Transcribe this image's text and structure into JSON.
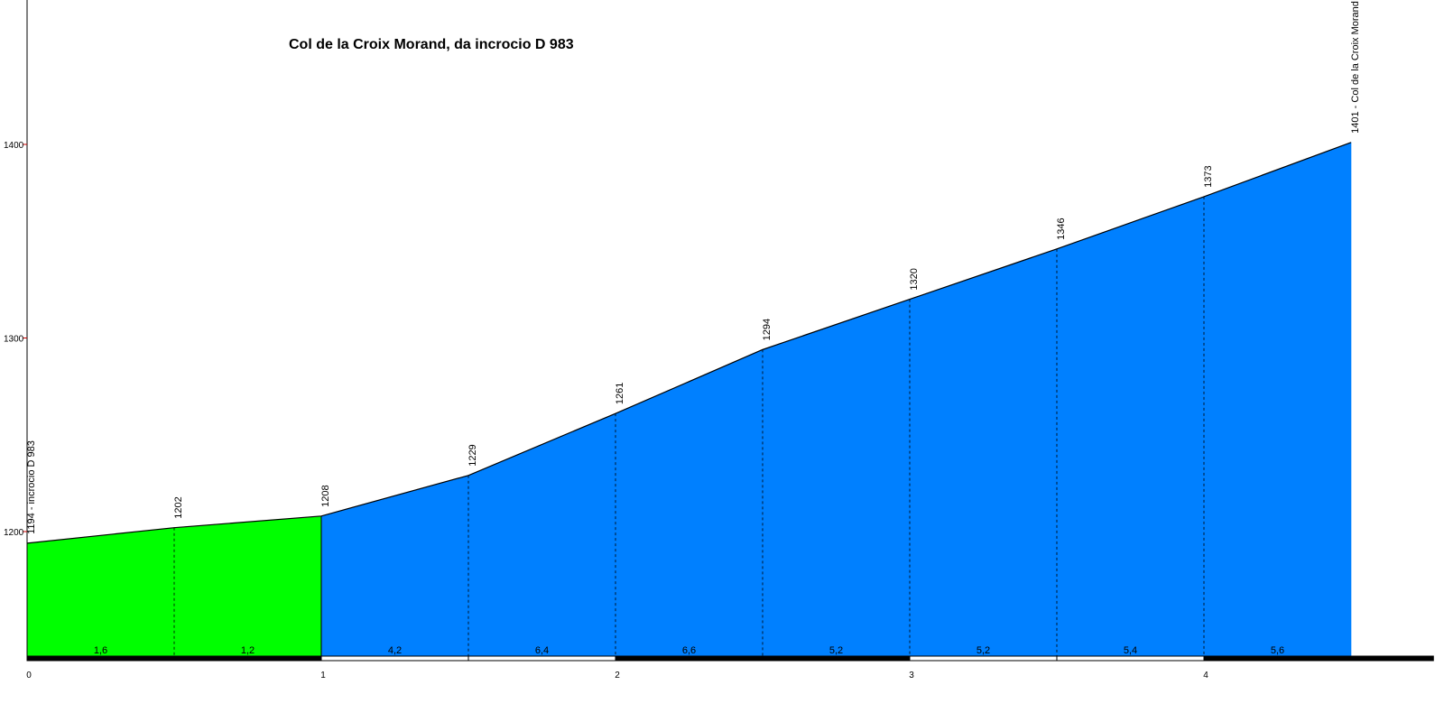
{
  "chart_data": {
    "type": "area",
    "title": "Col de la Croix Morand, da incrocio D 983",
    "xlabel": "",
    "ylabel": "",
    "xlim": [
      0,
      4.78
    ],
    "ylim": [
      1134,
      1474
    ],
    "x_ticks": [
      0,
      1,
      2,
      3,
      4
    ],
    "y_ticks": [
      1200,
      1300,
      1400
    ],
    "points": [
      {
        "x": 0,
        "y": 1194
      },
      {
        "x": 0.5,
        "y": 1202
      },
      {
        "x": 1.0,
        "y": 1208
      },
      {
        "x": 1.5,
        "y": 1229
      },
      {
        "x": 2.0,
        "y": 1261
      },
      {
        "x": 2.5,
        "y": 1294
      },
      {
        "x": 3.0,
        "y": 1320
      },
      {
        "x": 3.5,
        "y": 1346
      },
      {
        "x": 4.0,
        "y": 1373
      },
      {
        "x": 4.5,
        "y": 1401
      }
    ],
    "point_labels": [
      "1194 - incrocio D 983",
      "1202",
      "1208",
      "1229",
      "1261",
      "1294",
      "1320",
      "1346",
      "1373",
      "1401 - Col de la Croix Morand"
    ],
    "gradients": [
      "1,6",
      "1,2",
      "4,2",
      "6,4",
      "6,6",
      "5,2",
      "5,2",
      "5,4",
      "5,6"
    ],
    "segment_colors": [
      "#00ff00",
      "#00ff00",
      "#0080ff",
      "#0080ff",
      "#0080ff",
      "#0080ff",
      "#0080ff",
      "#0080ff",
      "#0080ff"
    ],
    "grid": false,
    "legend": "none"
  }
}
